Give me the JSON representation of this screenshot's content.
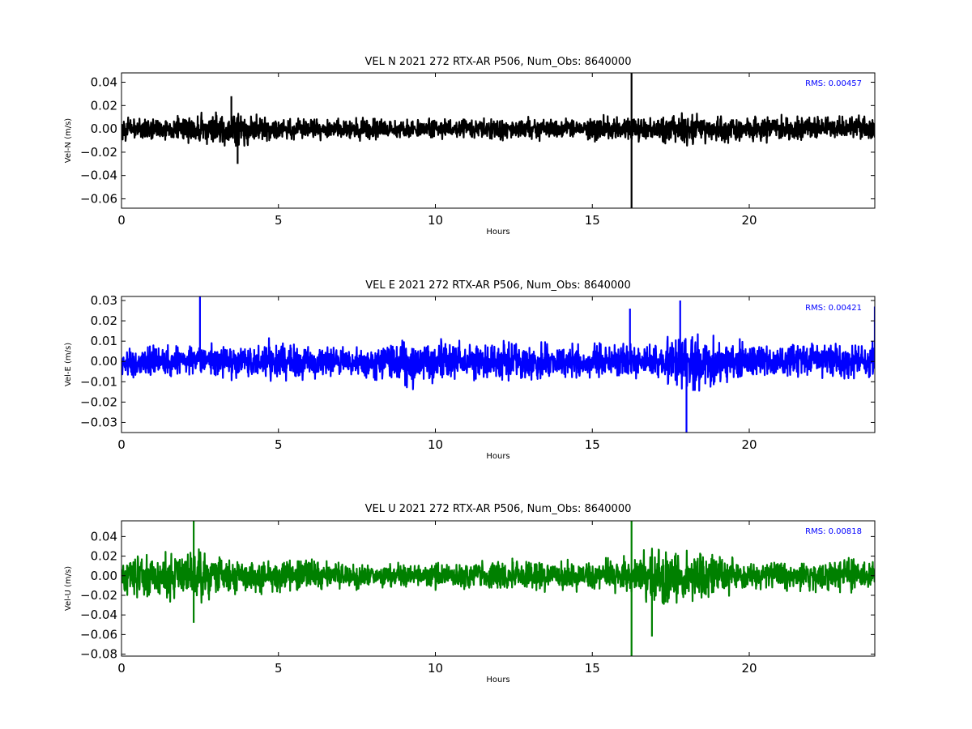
{
  "chart_data": [
    {
      "type": "line",
      "title": "VEL N 2021 272 RTX-AR  P506, Num_Obs: 8640000",
      "xlabel": "Hours",
      "ylabel": "Vel-N (m/s)",
      "annotation": "RMS:  0.00457",
      "color": "#000000",
      "xlim": [
        0,
        24
      ],
      "ylim": [
        -0.068,
        0.048
      ],
      "xticks": [
        0,
        5,
        10,
        15,
        20
      ],
      "xtick_labels": [
        "0",
        "5",
        "10",
        "15",
        "20"
      ],
      "yticks": [
        0.04,
        0.02,
        0.0,
        -0.02,
        -0.04,
        -0.06
      ],
      "ytick_labels": [
        "0.04",
        "0.02",
        "0.00",
        "−0.02",
        "−0.04",
        "−0.06"
      ],
      "noise_amplitude": 0.012,
      "envelope": [
        [
          0,
          0.012
        ],
        [
          2,
          0.014
        ],
        [
          3.6,
          0.02
        ],
        [
          4.5,
          0.013
        ],
        [
          7,
          0.012
        ],
        [
          10,
          0.012
        ],
        [
          14,
          0.012
        ],
        [
          16,
          0.014
        ],
        [
          18,
          0.017
        ],
        [
          19,
          0.014
        ],
        [
          24,
          0.014
        ]
      ],
      "spikes": [
        [
          16.25,
          0.048
        ],
        [
          16.25,
          -0.068
        ],
        [
          3.7,
          -0.03
        ],
        [
          3.5,
          0.028
        ]
      ]
    },
    {
      "type": "line",
      "title": "VEL E 2021 272 RTX-AR  P506, Num_Obs: 8640000",
      "xlabel": "Hours",
      "ylabel": "Vel-E (m/s)",
      "annotation": "RMS:  0.00421",
      "color": "#0000ff",
      "xlim": [
        0,
        24
      ],
      "ylim": [
        -0.035,
        0.032
      ],
      "xticks": [
        0,
        5,
        10,
        15,
        20
      ],
      "xtick_labels": [
        "0",
        "5",
        "10",
        "15",
        "20"
      ],
      "yticks": [
        0.03,
        0.02,
        0.01,
        0.0,
        -0.01,
        -0.02,
        -0.03
      ],
      "ytick_labels": [
        "0.03",
        "0.02",
        "0.01",
        "0.00",
        "−0.01",
        "−0.02",
        "−0.03"
      ],
      "noise_amplitude": 0.011,
      "envelope": [
        [
          0,
          0.012
        ],
        [
          1,
          0.011
        ],
        [
          2.5,
          0.009
        ],
        [
          3.5,
          0.011
        ],
        [
          5,
          0.013
        ],
        [
          7,
          0.009
        ],
        [
          9.3,
          0.016
        ],
        [
          11,
          0.012
        ],
        [
          14,
          0.011
        ],
        [
          16,
          0.011
        ],
        [
          17,
          0.012
        ],
        [
          18,
          0.02
        ],
        [
          19,
          0.016
        ],
        [
          20,
          0.011
        ],
        [
          24,
          0.011
        ]
      ],
      "spikes": [
        [
          2.5,
          0.032
        ],
        [
          18.0,
          -0.035
        ],
        [
          24.0,
          0.027
        ],
        [
          16.2,
          0.026
        ],
        [
          17.8,
          0.03
        ]
      ]
    },
    {
      "type": "line",
      "title": "VEL U 2021 272 RTX-AR  P506, Num_Obs: 8640000",
      "xlabel": "Hours",
      "ylabel": "Vel-U (m/s)",
      "annotation": "RMS:  0.00818",
      "color": "#008000",
      "xlim": [
        0,
        24
      ],
      "ylim": [
        -0.082,
        0.056
      ],
      "xticks": [
        0,
        5,
        10,
        15,
        20
      ],
      "xtick_labels": [
        "0",
        "5",
        "10",
        "15",
        "20"
      ],
      "yticks": [
        0.04,
        0.02,
        0.0,
        -0.02,
        -0.04,
        -0.06,
        -0.08
      ],
      "ytick_labels": [
        "0.04",
        "0.02",
        "0.00",
        "−0.02",
        "−0.04",
        "−0.06",
        "−0.08"
      ],
      "noise_amplitude": 0.02,
      "envelope": [
        [
          0,
          0.025
        ],
        [
          2.3,
          0.035
        ],
        [
          3.5,
          0.025
        ],
        [
          5,
          0.022
        ],
        [
          8,
          0.016
        ],
        [
          11,
          0.018
        ],
        [
          13.5,
          0.022
        ],
        [
          15,
          0.018
        ],
        [
          16.3,
          0.028
        ],
        [
          17,
          0.045
        ],
        [
          18.5,
          0.03
        ],
        [
          20,
          0.02
        ],
        [
          22,
          0.02
        ],
        [
          24,
          0.022
        ]
      ],
      "spikes": [
        [
          2.3,
          0.056
        ],
        [
          2.3,
          -0.048
        ],
        [
          16.25,
          0.056
        ],
        [
          16.25,
          -0.082
        ],
        [
          16.9,
          -0.062
        ]
      ]
    }
  ]
}
